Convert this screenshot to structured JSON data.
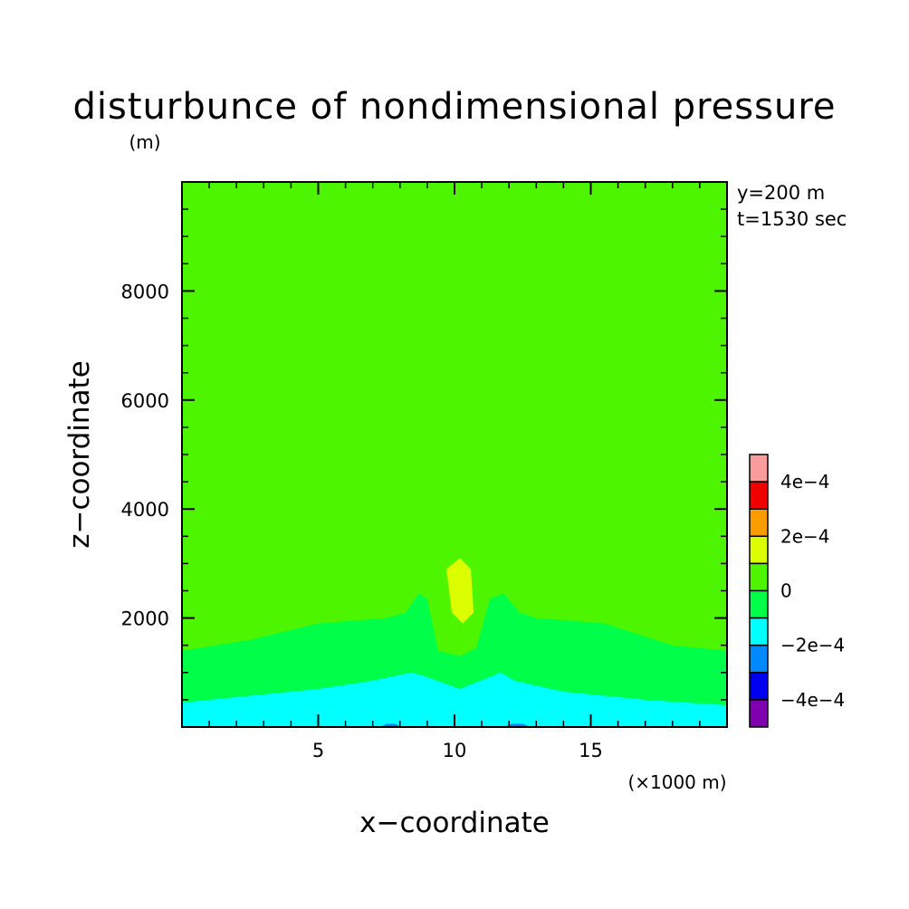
{
  "chart_data": {
    "type": "heatmap",
    "title": "disturbunce of nondimensional pressure",
    "ylabel_unit": "(m)",
    "xlabel": "x−coordinate",
    "ylabel": "z−coordinate",
    "xunit": "(×1000 m)",
    "info": [
      "y=200 m",
      "t=1530 sec"
    ],
    "xlim": [
      0,
      20
    ],
    "ylim": [
      0,
      10000
    ],
    "xticks": [
      {
        "value": 5,
        "label": "5"
      },
      {
        "value": 10,
        "label": "10"
      },
      {
        "value": 15,
        "label": "15"
      }
    ],
    "yticks": [
      {
        "value": 2000,
        "label": "2000"
      },
      {
        "value": 4000,
        "label": "4000"
      },
      {
        "value": 6000,
        "label": "6000"
      },
      {
        "value": 8000,
        "label": "8000"
      }
    ],
    "levels": [
      {
        "from": 0.0004,
        "to": 0.0005,
        "color": "#f89c9c"
      },
      {
        "from": 0.0003,
        "to": 0.0004,
        "color": "#f00000"
      },
      {
        "from": 0.0002,
        "to": 0.0003,
        "color": "#f89c00"
      },
      {
        "from": 0.0001,
        "to": 0.0002,
        "color": "#dcff00"
      },
      {
        "from": 0.0,
        "to": 0.0001,
        "color": "#4ef500"
      },
      {
        "from": -0.0001,
        "to": 0.0,
        "color": "#00ff48"
      },
      {
        "from": -0.0002,
        "to": -0.0001,
        "color": "#00ffff"
      },
      {
        "from": -0.0003,
        "to": -0.0002,
        "color": "#0088ff"
      },
      {
        "from": -0.0004,
        "to": -0.0003,
        "color": "#0000f0"
      },
      {
        "from": -0.0005,
        "to": -0.0004,
        "color": "#8000b0"
      }
    ],
    "colorbar_labels": [
      {
        "value": 0.0004,
        "label": "4e−4"
      },
      {
        "value": 0.0002,
        "label": "2e−4"
      },
      {
        "value": 0,
        "label": "0"
      },
      {
        "value": -0.0002,
        "label": "−2e−4"
      },
      {
        "value": -0.0004,
        "label": "−4e−4"
      }
    ],
    "regions": [
      {
        "name": "cyan-band",
        "color": "#00ffff",
        "points": [
          [
            0,
            0
          ],
          [
            20,
            0
          ],
          [
            20,
            400
          ],
          [
            17,
            500
          ],
          [
            14,
            650
          ],
          [
            12.2,
            850
          ],
          [
            11.7,
            1000
          ],
          [
            10.2,
            700
          ],
          [
            8.8,
            950
          ],
          [
            8.4,
            1000
          ],
          [
            7,
            850
          ],
          [
            5,
            700
          ],
          [
            2,
            550
          ],
          [
            0,
            450
          ]
        ]
      },
      {
        "name": "green-band",
        "color": "#00ff48",
        "points": [
          [
            0,
            450
          ],
          [
            2,
            550
          ],
          [
            5,
            700
          ],
          [
            7,
            850
          ],
          [
            8.4,
            1000
          ],
          [
            8.8,
            950
          ],
          [
            10.2,
            700
          ],
          [
            11.7,
            1000
          ],
          [
            12.2,
            850
          ],
          [
            14,
            650
          ],
          [
            17,
            500
          ],
          [
            20,
            400
          ],
          [
            20,
            1400
          ],
          [
            18,
            1500
          ],
          [
            15.5,
            1900
          ],
          [
            13,
            2000
          ],
          [
            12.4,
            2100
          ],
          [
            11.8,
            2450
          ],
          [
            11.3,
            2350
          ],
          [
            10.8,
            1450
          ],
          [
            10.2,
            1300
          ],
          [
            9.4,
            1400
          ],
          [
            9.0,
            2350
          ],
          [
            8.7,
            2450
          ],
          [
            8.2,
            2100
          ],
          [
            7.5,
            2000
          ],
          [
            5,
            1900
          ],
          [
            2.5,
            1600
          ],
          [
            0,
            1400
          ]
        ]
      },
      {
        "name": "yellow-blob",
        "color": "#dcff00",
        "points": [
          [
            10.2,
            3100
          ],
          [
            10.6,
            2900
          ],
          [
            10.7,
            2100
          ],
          [
            10.3,
            1900
          ],
          [
            9.9,
            2100
          ],
          [
            9.7,
            2900
          ]
        ]
      },
      {
        "name": "blue-dip-left",
        "color": "#0088ff",
        "points": [
          [
            7.3,
            0
          ],
          [
            8.1,
            0
          ],
          [
            7.8,
            60
          ],
          [
            7.5,
            60
          ]
        ]
      },
      {
        "name": "blue-dip-right",
        "color": "#0088ff",
        "points": [
          [
            11.8,
            0
          ],
          [
            12.8,
            0
          ],
          [
            12.5,
            60
          ],
          [
            12.1,
            60
          ]
        ]
      }
    ]
  }
}
